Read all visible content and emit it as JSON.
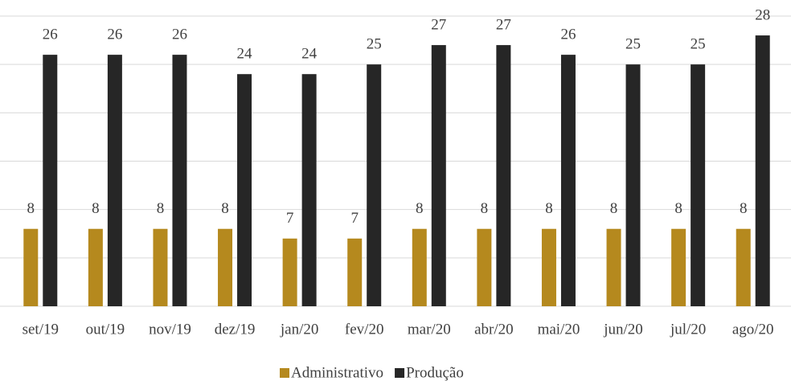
{
  "chart_data": {
    "type": "bar",
    "categories": [
      "set/19",
      "out/19",
      "nov/19",
      "dez/19",
      "jan/20",
      "fev/20",
      "mar/20",
      "abr/20",
      "mai/20",
      "jun/20",
      "jul/20",
      "ago/20"
    ],
    "series": [
      {
        "name": "Administrativo",
        "color": "#b5891e",
        "values": [
          8,
          8,
          8,
          8,
          7,
          7,
          8,
          8,
          8,
          8,
          8,
          8
        ]
      },
      {
        "name": "Produção",
        "color": "#262626",
        "values": [
          26,
          26,
          26,
          24,
          24,
          25,
          27,
          27,
          26,
          25,
          25,
          28
        ]
      }
    ],
    "ylim": [
      0,
      30
    ],
    "yticks": [
      0,
      5,
      10,
      15,
      20,
      25,
      30
    ],
    "grid": true,
    "legend": "bottom"
  }
}
